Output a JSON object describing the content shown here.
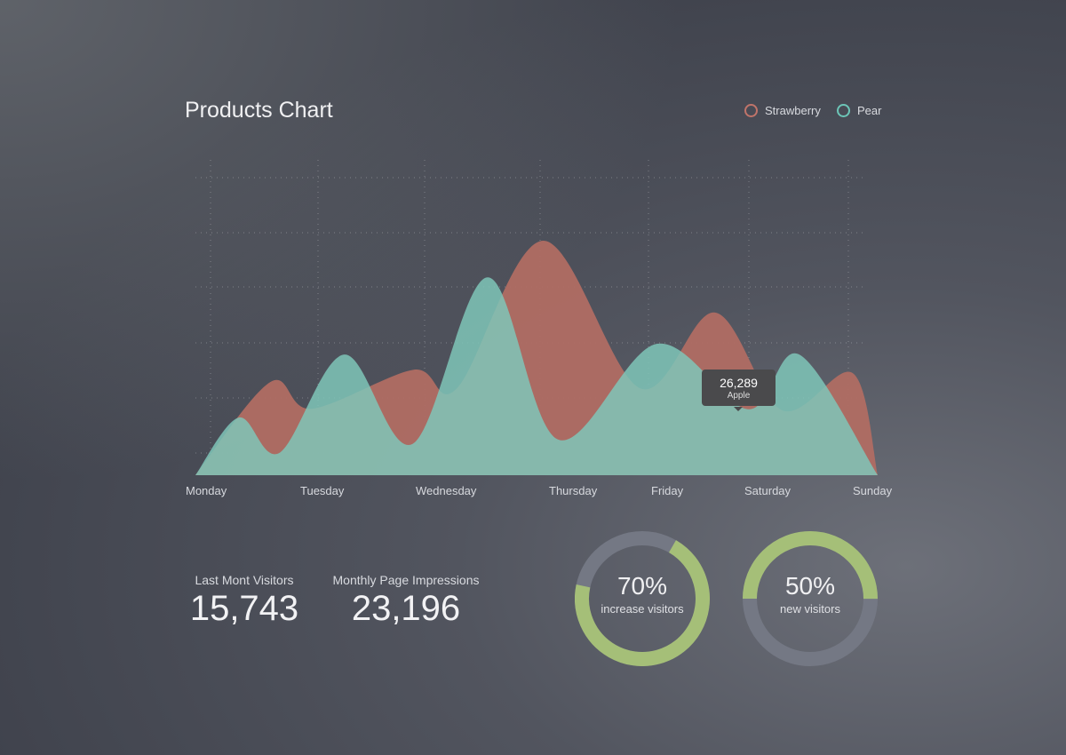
{
  "header": {
    "title": "Products Chart"
  },
  "legend": [
    {
      "label": "Strawberry",
      "color": "#c0746a"
    },
    {
      "label": "Pear",
      "color": "#6cc5b7"
    }
  ],
  "tooltip": {
    "value": "26,289",
    "label": "Apple"
  },
  "chart_data": {
    "type": "area",
    "title": "Products Chart",
    "categories": [
      "Monday",
      "Tuesday",
      "Wednesday",
      "Thursday",
      "Friday",
      "Saturday",
      "Sunday"
    ],
    "xlabel": "",
    "ylabel": "",
    "ylim": [
      0,
      60
    ],
    "grid": true,
    "legend_position": "top-right",
    "series": [
      {
        "name": "Strawberry",
        "color": "#b06d63",
        "points": [
          [
            0,
            0
          ],
          [
            0.66,
            19.1
          ],
          [
            1.02,
            13.6
          ],
          [
            1.92,
            21.6
          ],
          [
            2.3,
            17.8
          ],
          [
            3.06,
            48
          ],
          [
            3.91,
            17.8
          ],
          [
            4.57,
            33.3
          ],
          [
            5.16,
            13.3
          ],
          [
            5.78,
            20.9
          ],
          [
            6,
            0
          ]
        ]
      },
      {
        "name": "Pear",
        "color": "#7fc6b8",
        "points": [
          [
            0,
            0
          ],
          [
            0.38,
            11.8
          ],
          [
            0.74,
            4.6
          ],
          [
            1.31,
            24.7
          ],
          [
            1.91,
            6.4
          ],
          [
            2.57,
            40.5
          ],
          [
            3.19,
            7.3
          ],
          [
            4.06,
            26.9
          ],
          [
            4.86,
            13.5
          ],
          [
            5.31,
            24.7
          ],
          [
            6,
            0
          ]
        ]
      }
    ]
  },
  "stats": [
    {
      "label": "Last Mont Visitors",
      "value": "15,743"
    },
    {
      "label": "Monthly Page Impressions",
      "value": "23,196"
    }
  ],
  "donuts": [
    {
      "percent_text": "70%",
      "label": "increase visitors",
      "fraction": 0.7,
      "start_deg": 30
    },
    {
      "percent_text": "50%",
      "label": "new visitors",
      "fraction": 0.5,
      "start_deg": 270
    }
  ],
  "colors": {
    "donut_fill": "#a5bf78",
    "donut_track": "#747884"
  }
}
